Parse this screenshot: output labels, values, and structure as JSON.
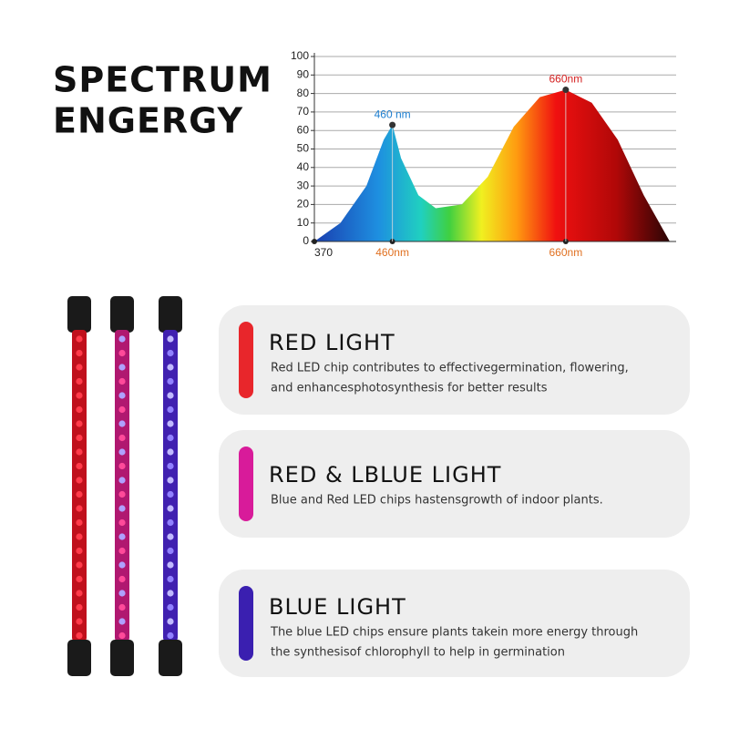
{
  "header": {
    "title_lines": [
      "SPECTRUM",
      "ENGERGY"
    ]
  },
  "chart_data": {
    "type": "area",
    "xlim": [
      370,
      780
    ],
    "ylim": [
      0,
      100
    ],
    "yticks": [
      0,
      10,
      20,
      30,
      40,
      50,
      60,
      70,
      80,
      90,
      100
    ],
    "xticks": [
      370,
      {
        "value": 460,
        "label": "460nm"
      },
      {
        "value": 660,
        "label": "660nm"
      }
    ],
    "x": [
      370,
      400,
      430,
      450,
      460,
      470,
      490,
      510,
      540,
      570,
      600,
      630,
      660,
      690,
      720,
      750,
      780
    ],
    "values": [
      0,
      10,
      30,
      55,
      63,
      45,
      25,
      18,
      20,
      35,
      62,
      78,
      82,
      75,
      55,
      25,
      0
    ],
    "annotations": [
      {
        "x": 460,
        "y": 63,
        "text": "460 nm",
        "color": "#1e7fd0"
      },
      {
        "x": 660,
        "y": 82,
        "text": "660nm",
        "color": "#d42020"
      }
    ],
    "grid": true
  },
  "cards": [
    {
      "title": "RED LIGHT",
      "color": "#e8262b",
      "lines": [
        "Red LED chip contributes to effectivegermination, flowering,",
        "and enhancesphotosynthesis for better results"
      ]
    },
    {
      "title": "RED & LBLUE LIGHT",
      "color": "#d81b9a",
      "lines": [
        "Blue and Red LED chips hastensgrowth of indoor plants."
      ]
    },
    {
      "title": "BLUE LIGHT",
      "color": "#3a1fb0",
      "lines": [
        "The blue LED chips ensure plants takein more energy through",
        "the synthesisof chlorophyll to help in germination"
      ]
    }
  ]
}
